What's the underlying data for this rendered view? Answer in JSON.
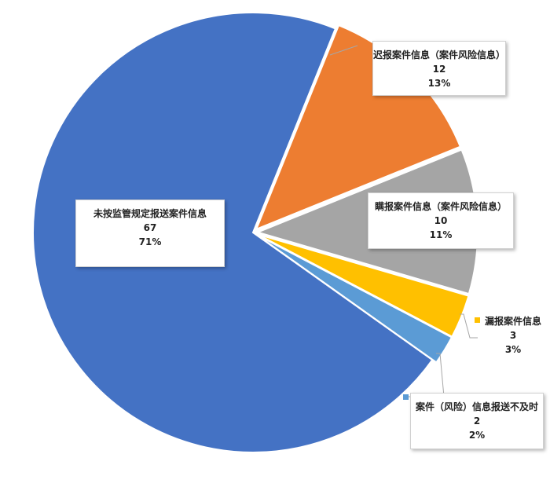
{
  "chart_data": {
    "type": "pie",
    "slices": [
      {
        "label": "未按监管规定报送案件信息",
        "value": 67,
        "percent": "71%",
        "color": "#4472C4"
      },
      {
        "label": "迟报案件信息（案件风险信息）",
        "value": 12,
        "percent": "13%",
        "color": "#ED7D31"
      },
      {
        "label": "瞒报案件信息（案件风险信息）",
        "value": 10,
        "percent": "11%",
        "color": "#A5A5A5"
      },
      {
        "label": "漏报案件信息",
        "value": 3,
        "percent": "3%",
        "color": "#FFC000"
      },
      {
        "label": "案件（风险）信息报送不及时",
        "value": 2,
        "percent": "2%",
        "color": "#5B9BD5"
      }
    ],
    "legend": "none",
    "data_labels": "callouts"
  }
}
